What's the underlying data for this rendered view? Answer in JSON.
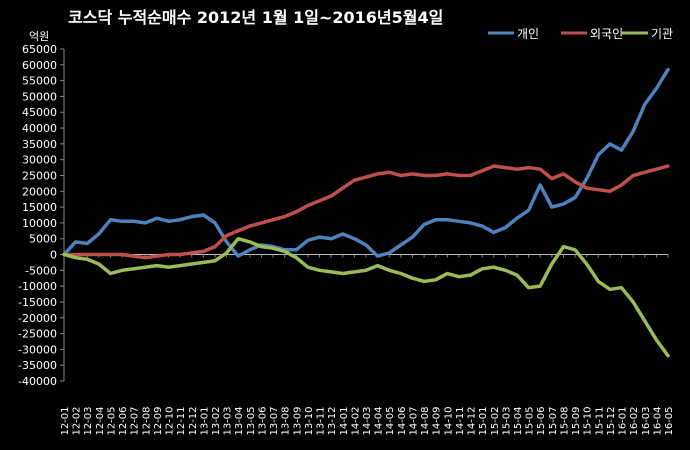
{
  "chart_data": {
    "type": "line",
    "title": "코스닥 누적순매수 2012년 1월 1일~2016년5월4일",
    "y_unit": "억원",
    "ylim": [
      -40000,
      65000
    ],
    "y_ticks": [
      65000,
      60000,
      55000,
      50000,
      45000,
      40000,
      35000,
      30000,
      25000,
      20000,
      15000,
      10000,
      5000,
      0,
      -5000,
      -10000,
      -15000,
      -20000,
      -25000,
      -30000,
      -35000,
      -40000
    ],
    "y_tick_labels": [
      "65000",
      "60000",
      "55000",
      "50000",
      "45000",
      "40000",
      "35000",
      "30000",
      "25000",
      "20000",
      "15000",
      "10000",
      "5000",
      "0",
      "-5000",
      "-10000",
      "-15000",
      "-20000",
      "-25000",
      "-30000",
      "-35000",
      "-40000"
    ],
    "categories": [
      "12-01",
      "12-02",
      "12-03",
      "12-04",
      "12-05",
      "12-06",
      "12-07",
      "12-08",
      "12-09",
      "12-10",
      "12-11",
      "12-12",
      "13-01",
      "13-02",
      "13-03",
      "13-04",
      "13-05",
      "13-06",
      "13-07",
      "13-08",
      "13-09",
      "13-10",
      "13-11",
      "13-12",
      "14-01",
      "14-02",
      "14-03",
      "14-04",
      "14-05",
      "14-06",
      "14-07",
      "14-08",
      "14-09",
      "14-10",
      "14-11",
      "14-12",
      "15-01",
      "15-02",
      "15-03",
      "15-04",
      "15-05",
      "15-06",
      "15-07",
      "15-08",
      "15-09",
      "15-10",
      "15-11",
      "15-12",
      "16-01",
      "16-02",
      "16-03",
      "16-04",
      "16-05"
    ],
    "grid": false,
    "legend_position": "top-right",
    "series": [
      {
        "name": "개인",
        "color": "#4F81BD",
        "values": [
          0,
          4000,
          3500,
          6500,
          11000,
          10500,
          10500,
          10000,
          11500,
          10500,
          11000,
          12000,
          12500,
          10000,
          4000,
          -500,
          1500,
          3000,
          2500,
          1500,
          1500,
          4500,
          5500,
          5000,
          6500,
          5000,
          3000,
          -500,
          500,
          3000,
          5500,
          9500,
          11000,
          11000,
          10500,
          10000,
          9000,
          7000,
          8500,
          11500,
          14000,
          22000,
          15000,
          16000,
          18000,
          24000,
          31500,
          35000,
          33000,
          39000,
          47500,
          52500,
          58500
        ]
      },
      {
        "name": "외국인",
        "color": "#C0504D",
        "values": [
          0,
          0,
          0,
          0,
          0,
          0,
          -500,
          -1000,
          -500,
          0,
          0,
          500,
          1000,
          2500,
          6000,
          7500,
          9000,
          10000,
          11000,
          12000,
          13500,
          15500,
          17000,
          18500,
          21000,
          23500,
          24500,
          25500,
          26000,
          25000,
          25500,
          25000,
          25000,
          25500,
          25000,
          25000,
          26500,
          28000,
          27500,
          27000,
          27500,
          27000,
          24000,
          25500,
          23000,
          21000,
          20500,
          20000,
          22000,
          25000,
          26000,
          27000,
          28000
        ]
      },
      {
        "name": "기관",
        "color": "#9BBB59",
        "values": [
          0,
          -1000,
          -1500,
          -3000,
          -6000,
          -5000,
          -4500,
          -4000,
          -3500,
          -4000,
          -3500,
          -3000,
          -2500,
          -2000,
          500,
          5000,
          4000,
          2500,
          2000,
          1000,
          -1000,
          -4000,
          -5000,
          -5500,
          -6000,
          -5500,
          -5000,
          -3500,
          -5000,
          -6000,
          -7500,
          -8500,
          -8000,
          -6000,
          -7000,
          -6500,
          -4500,
          -4000,
          -5000,
          -6500,
          -10500,
          -10000,
          -3000,
          2500,
          1500,
          -3000,
          -8500,
          -11000,
          -10500,
          -15000,
          -21000,
          -27000,
          -32000
        ]
      }
    ]
  }
}
